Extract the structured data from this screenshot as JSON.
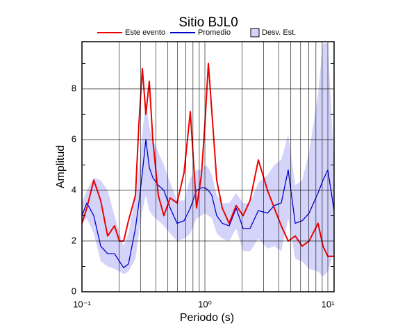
{
  "chart_data": {
    "type": "line",
    "title": "Sitio BJL0",
    "xlabel": "Periodo (s)",
    "ylabel": "Amplitud",
    "xscale": "log",
    "xlim": [
      0.1,
      11.24
    ],
    "ylim": [
      0,
      9.86
    ],
    "xticks": [
      {
        "value": 0.1,
        "label": "10⁻¹"
      },
      {
        "value": 1,
        "label": "10⁰"
      },
      {
        "value": 10,
        "label": "10¹"
      }
    ],
    "xminor_grid": [
      0.2,
      0.3,
      0.4,
      0.5,
      0.6,
      0.7,
      0.8,
      0.9,
      2,
      3,
      4,
      5,
      6,
      7,
      8,
      9
    ],
    "yticks": [
      0,
      2,
      4,
      6,
      8
    ],
    "yminor_ticks": [
      1,
      3,
      5,
      7,
      9
    ],
    "grid": true,
    "x": [
      0.1,
      0.1095,
      0.1248,
      0.142,
      0.1618,
      0.184,
      0.2018,
      0.2183,
      0.239,
      0.2723,
      0.2904,
      0.31,
      0.331,
      0.353,
      0.377,
      0.418,
      0.464,
      0.522,
      0.594,
      0.677,
      0.761,
      0.855,
      0.937,
      1,
      1.067,
      1.139,
      1.248,
      1.384,
      1.577,
      1.795,
      2.046,
      2.33,
      2.72,
      3.23,
      3.67,
      4.18,
      4.76,
      5.43,
      6.18,
      7.04,
      8.33,
      9.13,
      10,
      11.24
    ],
    "series": [
      {
        "name": "Este evento",
        "color": "#ee0000",
        "values": [
          2.7,
          3.3,
          4.4,
          3.6,
          2.2,
          2.6,
          2.0,
          2.0,
          2.8,
          3.8,
          6.6,
          8.8,
          7.0,
          8.3,
          6.0,
          3.8,
          3.0,
          3.7,
          3.5,
          4.7,
          7.1,
          3.3,
          4.6,
          6.6,
          9.0,
          7.1,
          4.4,
          3.3,
          2.7,
          3.4,
          3.0,
          3.6,
          5.2,
          4.0,
          3.3,
          2.6,
          2.0,
          2.2,
          1.8,
          2.0,
          2.7,
          1.8,
          1.4,
          1.4
        ]
      },
      {
        "name": "Promedio",
        "color": "#0000cc",
        "values": [
          3.0,
          3.5,
          3.0,
          1.8,
          1.5,
          1.5,
          1.2,
          0.95,
          1.1,
          2.5,
          3.5,
          4.7,
          6.0,
          4.9,
          4.5,
          4.2,
          4.0,
          3.3,
          2.7,
          2.8,
          3.3,
          4.0,
          4.1,
          4.1,
          4.0,
          3.8,
          3.0,
          2.7,
          2.6,
          3.3,
          2.5,
          2.5,
          3.2,
          3.1,
          3.4,
          3.5,
          4.8,
          2.7,
          2.8,
          3.1,
          3.9,
          4.4,
          4.8,
          3.2
        ]
      },
      {
        "name": "Desv. Est.",
        "color": "#d4d4fa",
        "upper": [
          3.5,
          4.0,
          4.5,
          4.4,
          4.0,
          3.0,
          2.3,
          1.8,
          2.3,
          3.8,
          4.8,
          6.3,
          7.5,
          6.5,
          6.0,
          5.5,
          5.0,
          4.3,
          3.6,
          3.6,
          4.5,
          4.8,
          4.8,
          5.0,
          4.9,
          4.6,
          3.8,
          3.5,
          3.5,
          3.9,
          3.5,
          3.5,
          4.3,
          4.6,
          5.0,
          5.2,
          6.2,
          4.2,
          4.4,
          5.5,
          7.8,
          9.8,
          9.8,
          5.0
        ],
        "lower": [
          2.7,
          2.9,
          2.3,
          1.2,
          1.0,
          0.9,
          0.8,
          0.7,
          0.8,
          1.3,
          2.3,
          3.2,
          3.8,
          3.2,
          3.0,
          2.8,
          2.6,
          2.3,
          2.0,
          2.1,
          2.3,
          2.9,
          3.0,
          3.1,
          3.0,
          2.9,
          2.3,
          2.1,
          2.0,
          2.5,
          1.6,
          1.6,
          2.1,
          1.7,
          1.8,
          1.6,
          2.9,
          1.3,
          1.2,
          0.9,
          0.8,
          0.6,
          0.8,
          1.6
        ]
      }
    ]
  }
}
